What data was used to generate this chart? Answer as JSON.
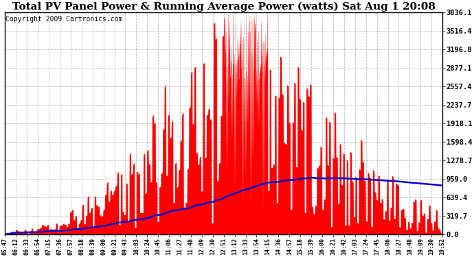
{
  "title": "Total PV Panel Power & Running Average Power (watts) Sat Aug 1 20:08",
  "copyright": "Copyright 2009 Cartronics.com",
  "yticks": [
    0.0,
    319.7,
    639.4,
    959.0,
    1278.7,
    1598.4,
    1918.1,
    2237.7,
    2557.4,
    2877.1,
    3196.8,
    3516.4,
    3836.1
  ],
  "ymax": 3836.1,
  "ymin": 0.0,
  "xtick_labels": [
    "05:47",
    "06:12",
    "06:33",
    "06:54",
    "07:15",
    "07:36",
    "07:57",
    "08:18",
    "08:39",
    "09:00",
    "09:21",
    "09:43",
    "10:03",
    "10:24",
    "10:45",
    "11:06",
    "11:27",
    "11:48",
    "12:09",
    "12:30",
    "12:51",
    "13:12",
    "13:33",
    "13:54",
    "14:15",
    "14:36",
    "14:57",
    "15:18",
    "15:39",
    "16:00",
    "16:21",
    "16:42",
    "17:03",
    "17:24",
    "17:45",
    "18:06",
    "18:27",
    "18:48",
    "19:09",
    "19:30",
    "19:52"
  ],
  "bar_color": "#ff0000",
  "line_color": "#0000cc",
  "background_color": "#ffffff",
  "grid_color": "#bbbbbb",
  "title_fontsize": 11,
  "copyright_fontsize": 7,
  "fig_width": 6.9,
  "fig_height": 3.75
}
